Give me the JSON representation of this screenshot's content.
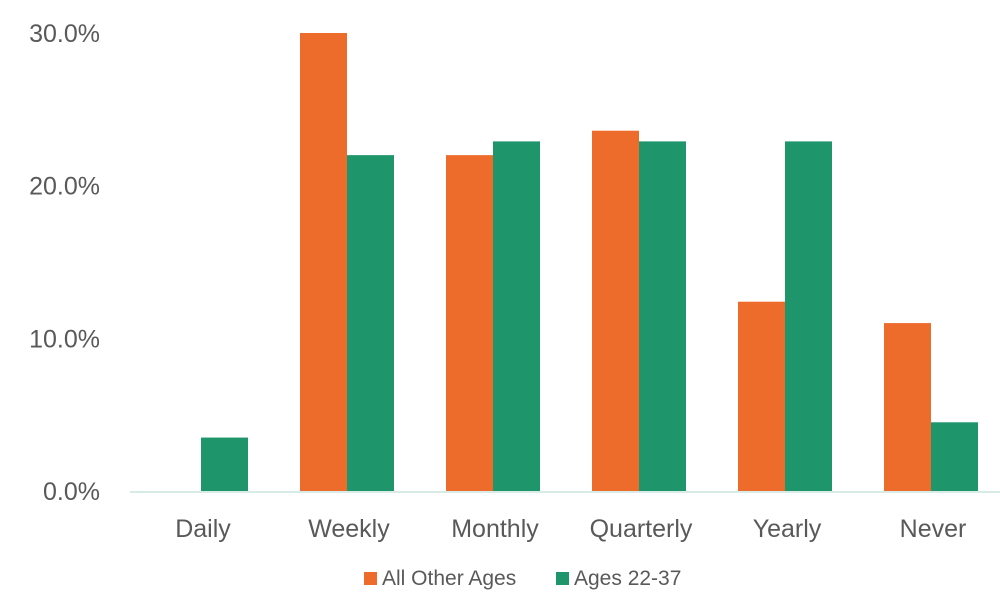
{
  "chart_data": {
    "type": "bar",
    "categories": [
      "Daily",
      "Weekly",
      "Monthly",
      "Quarterly",
      "Yearly",
      "Never"
    ],
    "series": [
      {
        "name": "All Other Ages",
        "color": "#ED6C2C",
        "values": [
          0.0,
          30.0,
          22.0,
          23.6,
          12.4,
          11.0
        ]
      },
      {
        "name": "Ages 22-37",
        "color": "#1F956B",
        "values": [
          3.5,
          22.0,
          22.9,
          22.9,
          22.9,
          4.5
        ]
      }
    ],
    "y_ticks": [
      "0.0%",
      "10.0%",
      "20.0%",
      "30.0%"
    ],
    "y_tick_values": [
      0,
      10,
      20,
      30
    ],
    "ylim": [
      0,
      30
    ],
    "grid": false,
    "legend_position": "bottom-center",
    "axis_color": "#D9EBE6"
  }
}
